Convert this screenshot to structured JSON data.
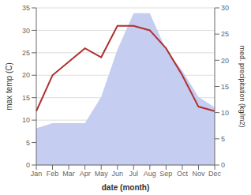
{
  "chart_data": {
    "type": "line",
    "categories": [
      "Jan",
      "Feb",
      "Mar",
      "Apr",
      "May",
      "Jun",
      "Jul",
      "Aug",
      "Sep",
      "Oct",
      "Nov",
      "Dec"
    ],
    "series": [
      {
        "type": "area",
        "color": "#c5cdf0",
        "values": [
          7,
          8,
          8,
          8,
          13,
          22,
          29,
          29,
          22,
          18,
          13,
          11
        ],
        "axis": "y2"
      },
      {
        "type": "line",
        "color": "#b03030",
        "values": [
          12,
          20,
          23,
          26,
          24,
          31,
          31,
          30,
          26,
          20,
          13,
          12
        ]
      }
    ],
    "xlabel": "date (month)",
    "ylabel": "max temp (C)",
    "y2label": "med. precipitation (kg/m2)",
    "ylim": [
      0,
      35
    ],
    "yticks": [
      0,
      5,
      10,
      15,
      20,
      25,
      30,
      35
    ],
    "y2lim": [
      0,
      30
    ],
    "y2ticks": [
      0,
      5,
      10,
      15,
      20,
      25,
      30
    ],
    "grid": true
  }
}
